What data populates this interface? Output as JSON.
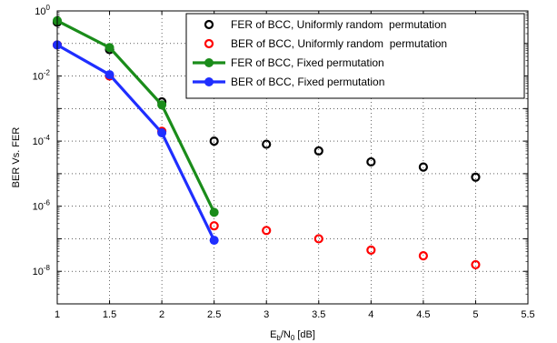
{
  "chart_data": {
    "type": "line",
    "xlabel_main": "E",
    "xlabel_sub1": "b",
    "xlabel_mid": "/N",
    "xlabel_sub2": "0",
    "xlabel_tail": " [dB]",
    "ylabel": "BER Vs. FER",
    "xlim": [
      1,
      5.5
    ],
    "ylim_log10": [
      -9,
      0
    ],
    "yscale": "log",
    "grid": true,
    "legend_position": "top-right",
    "x_ticks": [
      "1",
      "1.5",
      "2",
      "2.5",
      "3",
      "3.5",
      "4",
      "4.5",
      "5",
      "5.5"
    ],
    "y_ticks": [
      {
        "base": "10",
        "exp": "0",
        "value": 1
      },
      {
        "base": "10",
        "exp": "-2",
        "value": 0.01
      },
      {
        "base": "10",
        "exp": "-4",
        "value": 0.0001
      },
      {
        "base": "10",
        "exp": "-6",
        "value": 1e-06
      },
      {
        "base": "10",
        "exp": "-8",
        "value": 1e-08
      }
    ],
    "series": [
      {
        "name": "FER of BCC, Uniformly random  permutation",
        "style": "markers",
        "color": "#000000",
        "x": [
          1,
          1.5,
          2,
          2.5,
          3,
          3.5,
          4,
          4.5,
          5
        ],
        "y": [
          0.45,
          0.065,
          0.0016,
          0.0001,
          8e-05,
          5e-05,
          2.3e-05,
          1.6e-05,
          7.8e-06
        ]
      },
      {
        "name": "BER of BCC, Uniformly random  permutation",
        "style": "markers",
        "color": "#ff0000",
        "x": [
          1,
          1.5,
          2,
          2.5,
          3,
          3.5,
          4,
          4.5,
          5
        ],
        "y": [
          0.09,
          0.01,
          0.0002,
          2.5e-07,
          1.8e-07,
          1e-07,
          4.5e-08,
          3e-08,
          1.6e-08
        ]
      },
      {
        "name": "FER of BCC, Fixed permutation",
        "style": "line",
        "color": "#1a8c1a",
        "x": [
          1,
          1.5,
          2,
          2.5
        ],
        "y": [
          0.5,
          0.075,
          0.0013,
          6.5e-07
        ]
      },
      {
        "name": "BER of BCC, Fixed permutation",
        "style": "line",
        "color": "#1f2eff",
        "x": [
          1,
          1.5,
          2,
          2.5
        ],
        "y": [
          0.09,
          0.011,
          0.00018,
          9e-08
        ]
      }
    ]
  }
}
